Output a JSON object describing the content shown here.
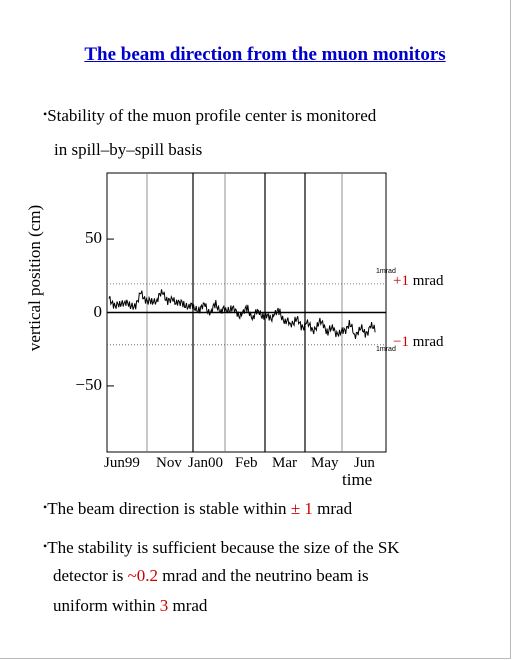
{
  "title": "The beam direction from the muon monitors",
  "intro": {
    "line1": "Stability of the muon profile center is monitored",
    "line2": "in spill–by–spill basis"
  },
  "chart_data": {
    "type": "line",
    "ylabel": "vertical position (cm)",
    "xlabel": "time",
    "ylim": [
      -95,
      95
    ],
    "yticks": [
      {
        "value": 50,
        "label": "50"
      },
      {
        "value": 0,
        "label": "0"
      },
      {
        "value": -50,
        "label": "−50"
      }
    ],
    "xticks": [
      "Jun99",
      "Nov",
      "Jan00",
      "Feb",
      "Mar",
      "May",
      "Jun"
    ],
    "reference_lines": [
      {
        "value": 19.5,
        "label_sign": "+1",
        "label_unit": "mrad",
        "tiny": "1mrad"
      },
      {
        "value": -22,
        "label_sign": "−1",
        "label_unit": "mrad",
        "tiny": "1mrad"
      }
    ],
    "segment_dividers": 9,
    "series": [
      {
        "x": [
          0,
          2,
          4,
          6,
          8,
          10,
          12,
          14,
          16,
          18,
          20,
          22,
          24,
          26,
          28,
          30,
          32,
          34,
          36,
          38,
          40,
          42,
          44,
          46,
          48,
          50,
          52,
          54,
          56,
          58,
          60,
          62,
          64,
          66,
          68,
          70,
          72,
          74,
          76,
          78,
          80,
          82,
          84,
          86,
          88,
          90,
          92,
          94,
          96,
          98,
          100
        ],
        "values": [
          8,
          6,
          4,
          9,
          3,
          6,
          12,
          9,
          6,
          10,
          13,
          9,
          7,
          8,
          4,
          6,
          2,
          3,
          4,
          0,
          5,
          2,
          1,
          4,
          -2,
          0,
          2,
          -3,
          1,
          -2,
          -4,
          -1,
          0,
          -6,
          -8,
          -4,
          -10,
          -7,
          -12,
          -9,
          -6,
          -14,
          -10,
          -16,
          -12,
          -8,
          -15,
          -11,
          -14,
          -10,
          -12
        ]
      }
    ]
  },
  "bullets": {
    "b1_prefix": "The beam direction is stable within ",
    "b1_value": "± 1",
    "b1_suffix": " mrad",
    "b2_line1": "The stability is sufficient because the size of the SK",
    "b2_line2_prefix": "detector is ",
    "b2_line2_value": "~0.2",
    "b2_line2_suffix": " mrad and the neutrino beam is",
    "b2_line3_prefix": "uniform within ",
    "b2_line3_value": "3",
    "b2_line3_suffix": " mrad"
  },
  "colors": {
    "title": "#0000cc",
    "accent": "#cc0000"
  }
}
